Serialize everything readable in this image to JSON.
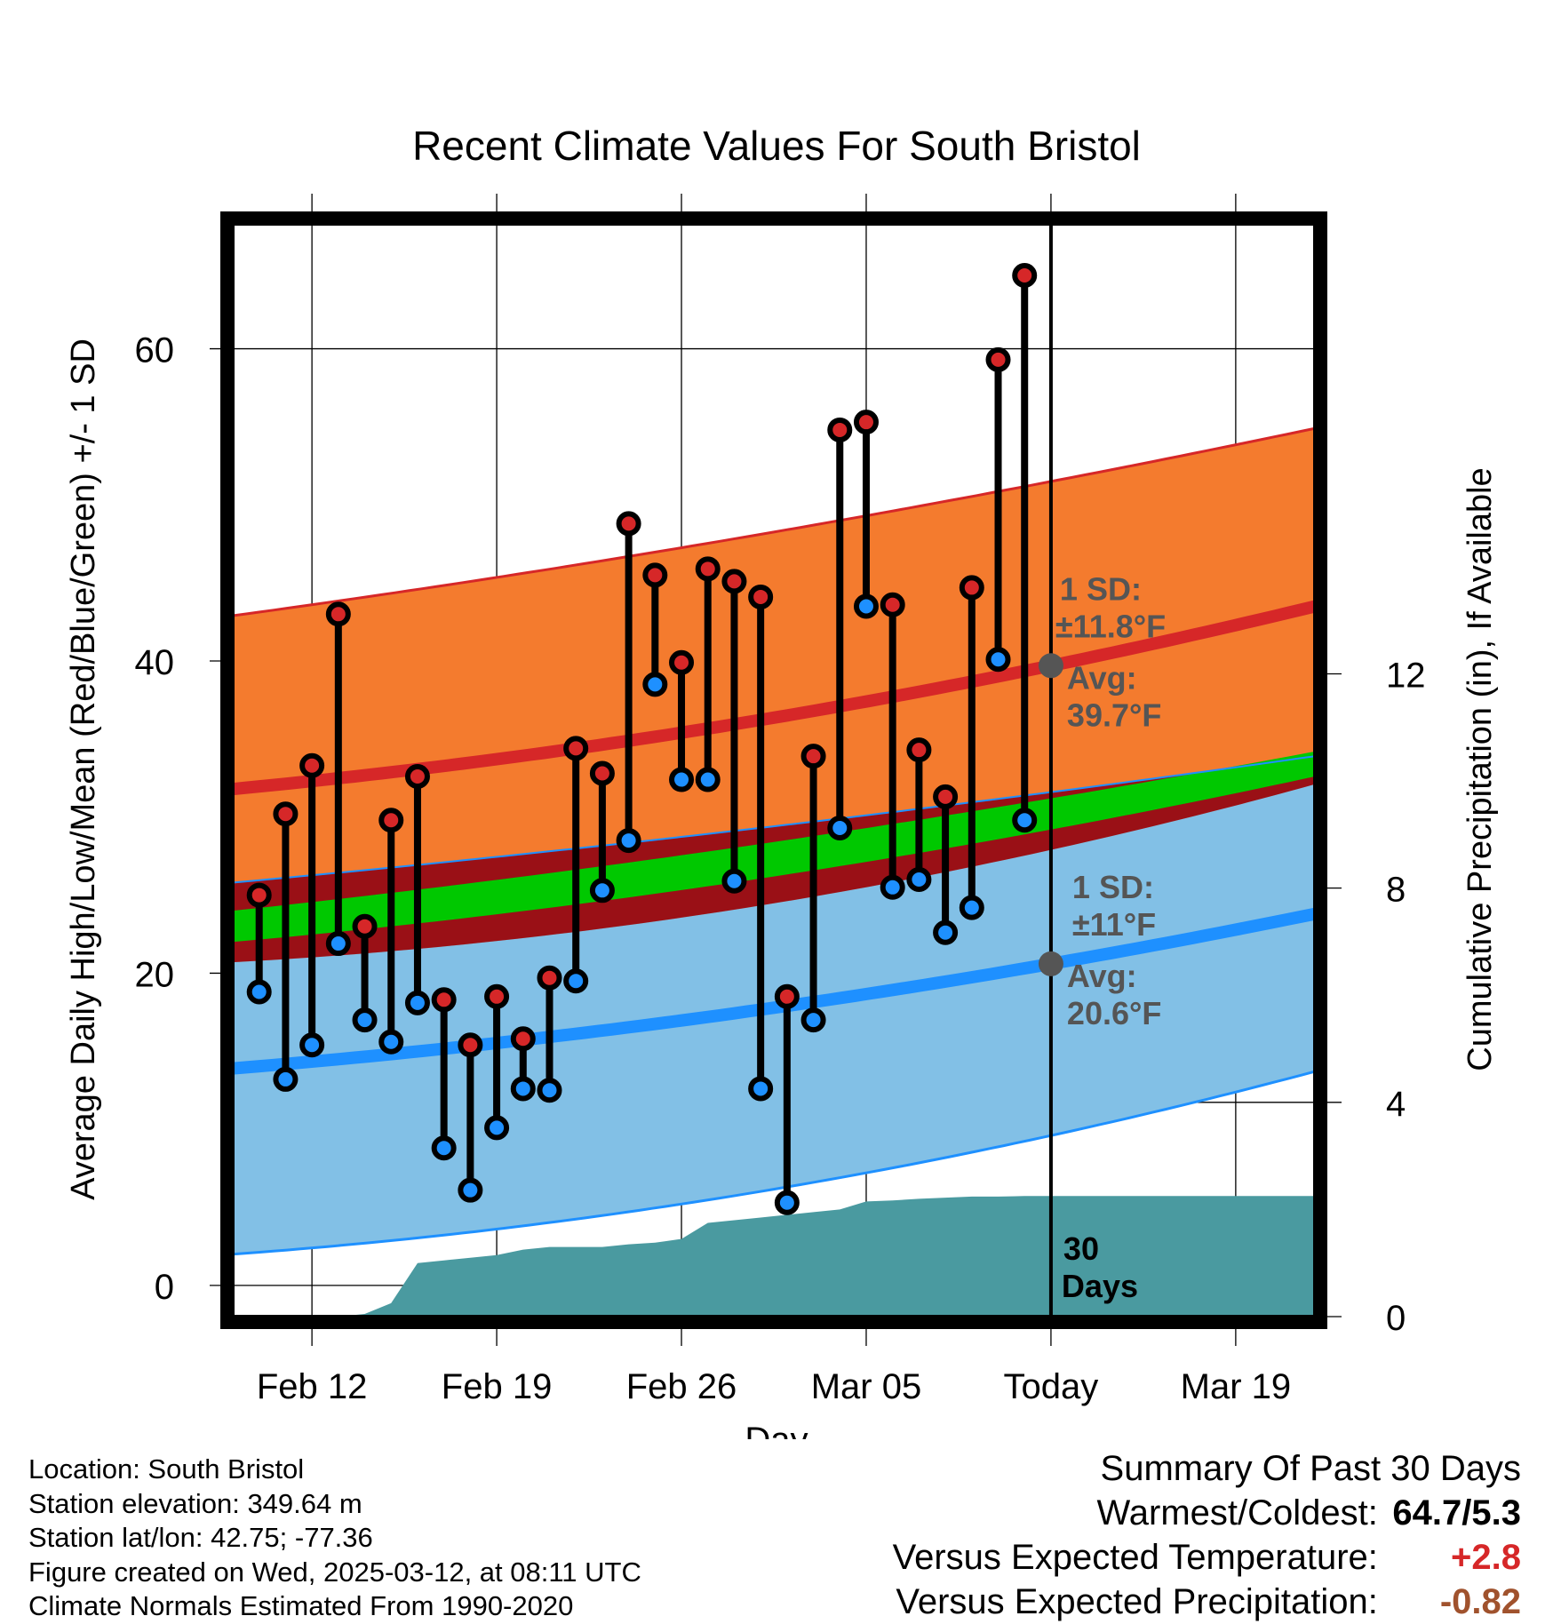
{
  "chart_data": {
    "type": "line",
    "title": "Recent Climate Values For South Bristol",
    "xlabel": "Day",
    "ylabel_left": "Average Daily High/Low/Mean (Red/Blue/Green) +/- 1 SD",
    "ylabel_right": "Cumulative Precipitation (in), If Available",
    "x_tick_labels": [
      "Feb 12",
      "Feb 19",
      "Feb 26",
      "Mar 05",
      "Today",
      "Mar 19"
    ],
    "x_tick_dates": [
      "2025-02-12",
      "2025-02-19",
      "2025-02-26",
      "2025-03-05",
      "2025-03-12",
      "2025-03-19"
    ],
    "x_range": [
      "2025-02-09",
      "2025-03-22"
    ],
    "today": "2025-03-12",
    "ylim_left": [
      -2,
      68
    ],
    "yticks_left": [
      0,
      20,
      40,
      60
    ],
    "ylim_right": [
      0,
      20.4
    ],
    "yticks_right": [
      0,
      4,
      8,
      12
    ],
    "grid": true,
    "daily_obs": {
      "dates": [
        "2025-02-10",
        "2025-02-11",
        "2025-02-12",
        "2025-02-13",
        "2025-02-14",
        "2025-02-15",
        "2025-02-16",
        "2025-02-17",
        "2025-02-18",
        "2025-02-19",
        "2025-02-20",
        "2025-02-21",
        "2025-02-22",
        "2025-02-23",
        "2025-02-24",
        "2025-02-25",
        "2025-02-26",
        "2025-02-27",
        "2025-02-28",
        "2025-03-01",
        "2025-03-02",
        "2025-03-03",
        "2025-03-04",
        "2025-03-05",
        "2025-03-06",
        "2025-03-07",
        "2025-03-08",
        "2025-03-09",
        "2025-03-10",
        "2025-03-11"
      ],
      "high": [
        25.0,
        30.2,
        33.3,
        43.0,
        23.0,
        29.8,
        32.6,
        18.3,
        15.4,
        18.5,
        15.8,
        19.7,
        34.4,
        32.8,
        48.8,
        45.5,
        39.9,
        45.9,
        45.1,
        44.1,
        18.5,
        33.9,
        54.8,
        55.3,
        43.6,
        34.3,
        31.3,
        44.7,
        59.3,
        64.7
      ],
      "low": [
        18.8,
        13.2,
        15.4,
        21.9,
        17.0,
        15.6,
        18.1,
        8.8,
        6.1,
        10.1,
        12.6,
        12.5,
        19.5,
        25.3,
        28.5,
        38.5,
        32.4,
        32.4,
        25.9,
        12.6,
        5.3,
        17.0,
        29.3,
        43.5,
        25.5,
        26.0,
        22.6,
        24.2,
        40.1,
        29.8
      ],
      "high_color": "#d62728",
      "low_color": "#1e90ff"
    },
    "normals": {
      "dates": [
        "2025-02-09",
        "2025-03-12",
        "2025-03-22"
      ],
      "high_avg": [
        31.8,
        39.7,
        43.5
      ],
      "high_sd": [
        11.1,
        11.8,
        11.4
      ],
      "low_avg": [
        13.9,
        20.6,
        23.8
      ],
      "low_sd": [
        11.9,
        11.0,
        10.1
      ],
      "mean_avg": [
        23.0,
        30.2,
        33.4
      ],
      "mean_band": [
        2.0,
        2.0,
        1.6
      ]
    },
    "annotations": {
      "high_sd_label": "1 SD:",
      "high_sd_value": "±11.8°F",
      "high_avg_label": "Avg:",
      "high_avg_value": "39.7°F",
      "low_sd_label": "1 SD:",
      "low_sd_value": "±11°F",
      "low_avg_label": "Avg:",
      "low_avg_value": "20.6°F",
      "precip_label_1": "30",
      "precip_label_2": "Days"
    },
    "precip": {
      "dates": [
        "2025-02-12",
        "2025-02-13",
        "2025-02-14",
        "2025-02-15",
        "2025-02-16",
        "2025-02-17",
        "2025-02-18",
        "2025-02-19",
        "2025-02-20",
        "2025-02-21",
        "2025-02-22",
        "2025-02-23",
        "2025-02-24",
        "2025-02-25",
        "2025-02-26",
        "2025-02-27",
        "2025-02-28",
        "2025-03-01",
        "2025-03-02",
        "2025-03-03",
        "2025-03-04",
        "2025-03-05",
        "2025-03-06",
        "2025-03-07",
        "2025-03-08",
        "2025-03-09",
        "2025-03-10",
        "2025-03-11",
        "2025-03-12",
        "2025-03-22"
      ],
      "values": [
        0.0,
        0.0,
        0.05,
        0.25,
        1.0,
        1.05,
        1.1,
        1.15,
        1.25,
        1.3,
        1.3,
        1.3,
        1.35,
        1.38,
        1.45,
        1.75,
        1.8,
        1.85,
        1.9,
        1.95,
        2.0,
        2.15,
        2.17,
        2.2,
        2.22,
        2.24,
        2.24,
        2.25,
        2.25,
        2.25
      ],
      "color": "#4a9aa0"
    },
    "colors": {
      "high_band": "#f47b2e",
      "low_band": "#82c0e6",
      "overlap_band": "#9a1016",
      "mean_band": "#00c800",
      "high_line": "#d62728",
      "low_line": "#1e90ff",
      "avg_marker": "#555555",
      "annotation_text": "#555555"
    }
  },
  "footer": {
    "location": "Location: South Bristol",
    "elevation": "Station elevation: 349.64 m",
    "latlon": "Station lat/lon: 42.75; -77.36",
    "created": "Figure created on Wed, 2025-03-12, at 08:11 UTC",
    "normals": "Climate Normals Estimated From 1990-2020"
  },
  "summary": {
    "title": "Summary Of Past 30 Days",
    "warm_cold_label": "Warmest/Coldest:",
    "warm_cold_value": "64.7/5.3",
    "temp_label": "Versus Expected Temperature:",
    "temp_value": "+2.8",
    "temp_color": "#d62728",
    "precip_label": "Versus Expected Precipitation:",
    "precip_value": "-0.82",
    "precip_color": "#a0522d"
  }
}
